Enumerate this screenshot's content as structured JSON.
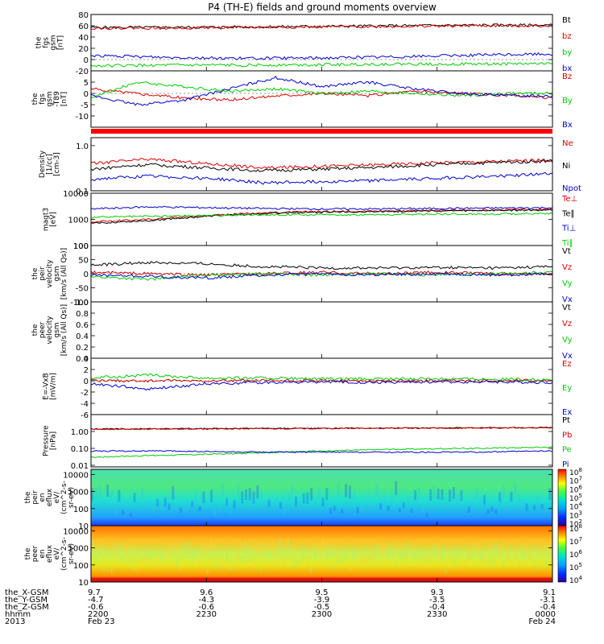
{
  "title": "P4 (TH-E) fields and ground moments overview",
  "colors": {
    "black": "#000000",
    "red": "#dd0000",
    "green": "#00cc00",
    "blue": "#0000cc"
  },
  "chart_data": [
    {
      "type": "line",
      "ylabel": [
        "the",
        "fgs",
        "gsm",
        "[nT]"
      ],
      "ylim": [
        -20,
        80
      ],
      "yticks": [
        "80",
        "60",
        "40",
        "20",
        "0",
        "-20"
      ],
      "legend": [
        "Bt",
        "bz",
        "by",
        "bx"
      ],
      "series": [
        {
          "name": "Bt",
          "color": "black",
          "values": [
            57,
            57,
            58,
            59,
            60,
            61,
            61
          ]
        },
        {
          "name": "bz",
          "color": "red",
          "values": [
            56,
            56,
            57,
            58,
            59,
            60,
            60
          ]
        },
        {
          "name": "by",
          "color": "green",
          "values": [
            -11,
            -10,
            -10,
            -9,
            -8,
            -8,
            -7
          ]
        },
        {
          "name": "bx",
          "color": "blue",
          "values": [
            7,
            4,
            2,
            3,
            5,
            8,
            10
          ]
        }
      ]
    },
    {
      "type": "line",
      "ylabel": [
        "the",
        "fgs",
        "gsm",
        "-T89",
        "[nT]"
      ],
      "ylim": [
        -15,
        10
      ],
      "yticks": [
        "5",
        "0",
        "-5",
        "-10"
      ],
      "legend": [
        "Bz",
        "By",
        "Bx"
      ],
      "series": [
        {
          "name": "Bz",
          "color": "red",
          "values": [
            2,
            0,
            -2,
            -3,
            -1,
            0,
            -1,
            1,
            0,
            -1,
            -2
          ]
        },
        {
          "name": "By",
          "color": "green",
          "values": [
            -2,
            5,
            3,
            1,
            2,
            0,
            1,
            0,
            -1,
            0,
            0
          ]
        },
        {
          "name": "Bx",
          "color": "blue",
          "values": [
            -1,
            -5,
            -3,
            2,
            7,
            3,
            5,
            2,
            0,
            -1,
            -1
          ]
        }
      ]
    },
    {
      "type": "line",
      "ylabel": [
        "Density",
        "[1/cc]",
        "[cm-3]"
      ],
      "ylim": [
        0.1,
        1.5
      ],
      "log": true,
      "yticks": [
        "1.0",
        "0.1"
      ],
      "legend": [
        "Ne",
        "Ni",
        "Npot"
      ],
      "series": [
        {
          "name": "Ne",
          "color": "red",
          "values": [
            0.4,
            0.5,
            0.4,
            0.32,
            0.35,
            0.38,
            0.42,
            0.45,
            0.48
          ]
        },
        {
          "name": "Ni",
          "color": "black",
          "values": [
            0.3,
            0.38,
            0.32,
            0.28,
            0.3,
            0.33,
            0.38,
            0.42,
            0.46
          ]
        },
        {
          "name": "Npot",
          "color": "blue",
          "values": [
            0.18,
            0.21,
            0.19,
            0.15,
            0.16,
            0.17,
            0.19,
            0.21,
            0.24
          ]
        }
      ]
    },
    {
      "type": "line",
      "ylabel": [
        "magt3",
        "[eV]"
      ],
      "ylim": [
        100,
        10000
      ],
      "log": true,
      "yticks": [
        "10000",
        "1000",
        "100"
      ],
      "legend": [
        "Te⊥",
        "Te∥",
        "Ti⊥",
        "Ti∥"
      ],
      "series": [
        {
          "name": "Te⊥",
          "color": "red",
          "values": [
            800,
            1000,
            1400,
            1800,
            2000,
            2100,
            2200,
            2300,
            2400
          ]
        },
        {
          "name": "Te∥",
          "color": "black",
          "values": [
            700,
            900,
            1300,
            1700,
            1900,
            2000,
            2100,
            2200,
            2300
          ]
        },
        {
          "name": "Ti⊥",
          "color": "blue",
          "values": [
            2500,
            3000,
            2800,
            2600,
            2500,
            2500,
            2600,
            2700,
            2800
          ]
        },
        {
          "name": "Ti∥",
          "color": "green",
          "values": [
            1200,
            1300,
            1400,
            1500,
            1500,
            1500,
            1600,
            1600,
            1700
          ]
        }
      ]
    },
    {
      "type": "line",
      "ylabel": [
        "the",
        "peir",
        "velocity",
        "gsm",
        "[km/s (All Qs)]"
      ],
      "ylim": [
        -100,
        100
      ],
      "yticks": [
        "100",
        "50",
        "0",
        "-50",
        "-100"
      ],
      "legend": [
        "Vt",
        "Vz",
        "Vy",
        "Vx"
      ],
      "series": [
        {
          "name": "Vt",
          "color": "black",
          "values": [
            30,
            40,
            35,
            25,
            20,
            20,
            22,
            20,
            25
          ]
        },
        {
          "name": "Vz",
          "color": "red",
          "values": [
            5,
            0,
            -5,
            0,
            5,
            0,
            5,
            0,
            0
          ]
        },
        {
          "name": "Vy",
          "color": "green",
          "values": [
            -10,
            -20,
            -5,
            0,
            -5,
            0,
            -5,
            0,
            5
          ]
        },
        {
          "name": "Vx",
          "color": "blue",
          "values": [
            -5,
            -10,
            -15,
            -5,
            0,
            -5,
            0,
            -5,
            0
          ]
        }
      ]
    },
    {
      "type": "line",
      "ylabel": [
        "the",
        "peer",
        "velocity",
        "gsm",
        "[km/s (All Qs)]"
      ],
      "ylim": [
        0,
        1
      ],
      "yticks": [
        "1.0",
        "0.8",
        "0.6",
        "0.4",
        "0.2",
        "0.0"
      ],
      "legend": [
        "Vt",
        "Vz",
        "Vy",
        "Vx"
      ],
      "series": []
    },
    {
      "type": "line",
      "ylabel": [
        "E=-VxB",
        "[mV/m]"
      ],
      "ylim": [
        -6,
        4
      ],
      "yticks": [
        "4",
        "2",
        "0",
        "-2",
        "-4",
        "-6"
      ],
      "legend": [
        "Ez",
        "Ey",
        "Ex"
      ],
      "series": [
        {
          "name": "Ez",
          "color": "red",
          "values": [
            0,
            0,
            0,
            0,
            0,
            0,
            0,
            0,
            0
          ]
        },
        {
          "name": "Ey",
          "color": "green",
          "values": [
            0.5,
            1,
            0.5,
            0.5,
            0.3,
            0.3,
            0.4,
            0.3,
            0.2
          ]
        },
        {
          "name": "Ex",
          "color": "blue",
          "values": [
            -0.5,
            -1.5,
            -0.5,
            -0.3,
            -0.2,
            -0.3,
            -0.2,
            -0.2,
            -0.3
          ]
        }
      ]
    },
    {
      "type": "line",
      "ylabel": [
        "Pressure",
        "[nPa]"
      ],
      "ylim": [
        0.008,
        10
      ],
      "log": true,
      "yticks": [
        "1.00",
        "0.10",
        "0.01"
      ],
      "legend": [
        "Pt",
        "Pb",
        "Pe",
        "Pi"
      ],
      "series": [
        {
          "name": "Pt",
          "color": "black",
          "values": [
            1.4,
            1.45,
            1.5,
            1.55,
            1.6,
            1.65,
            1.7
          ]
        },
        {
          "name": "Pb",
          "color": "red",
          "values": [
            1.35,
            1.4,
            1.45,
            1.5,
            1.55,
            1.6,
            1.65
          ]
        },
        {
          "name": "Pe",
          "color": "green",
          "values": [
            0.03,
            0.04,
            0.05,
            0.07,
            0.09,
            0.1,
            0.12
          ]
        },
        {
          "name": "Pi",
          "color": "blue",
          "values": [
            0.07,
            0.07,
            0.06,
            0.06,
            0.06,
            0.06,
            0.07
          ]
        }
      ]
    },
    {
      "type": "heatmap",
      "ylabel": [
        "the",
        "peir",
        "en",
        "eflux",
        "eV/",
        "(cm^2-s-",
        "sr-eV)"
      ],
      "ylim": [
        10,
        20000
      ],
      "log": true,
      "yticks": [
        "10000",
        "1000",
        "100",
        "10"
      ],
      "colorbar_labels": [
        "10^8",
        "10^7",
        "10^6",
        "10^5",
        "10^4",
        "10^3",
        "10^2"
      ]
    },
    {
      "type": "heatmap",
      "ylabel": [
        "the",
        "peer",
        "en",
        "eflux",
        "eV/",
        "(cm^2-s-",
        "sr-eV)"
      ],
      "ylim": [
        10,
        20000
      ],
      "log": true,
      "yticks": [
        "10000",
        "1000",
        "100",
        "10"
      ],
      "colorbar_labels": [
        "10^8",
        "10^7",
        "10^6",
        "10^5",
        "10^4"
      ]
    }
  ],
  "x_axis": {
    "row_labels": [
      "the_X-GSM",
      "the_Y-GSM",
      "the_Z-GSM",
      "hhmm",
      "2013"
    ],
    "columns": [
      {
        "values": [
          "9.7",
          "-4.7",
          "-0.6",
          "2200",
          "Feb 23"
        ]
      },
      {
        "values": [
          "9.6",
          "-4.3",
          "-0.6",
          "2230",
          ""
        ]
      },
      {
        "values": [
          "9.5",
          "-3.9",
          "-0.5",
          "2300",
          ""
        ]
      },
      {
        "values": [
          "9.3",
          "-3.5",
          "-0.4",
          "2330",
          ""
        ]
      },
      {
        "values": [
          "9.1",
          "-3.1",
          "-0.4",
          "0000",
          "Feb 24"
        ]
      }
    ]
  }
}
